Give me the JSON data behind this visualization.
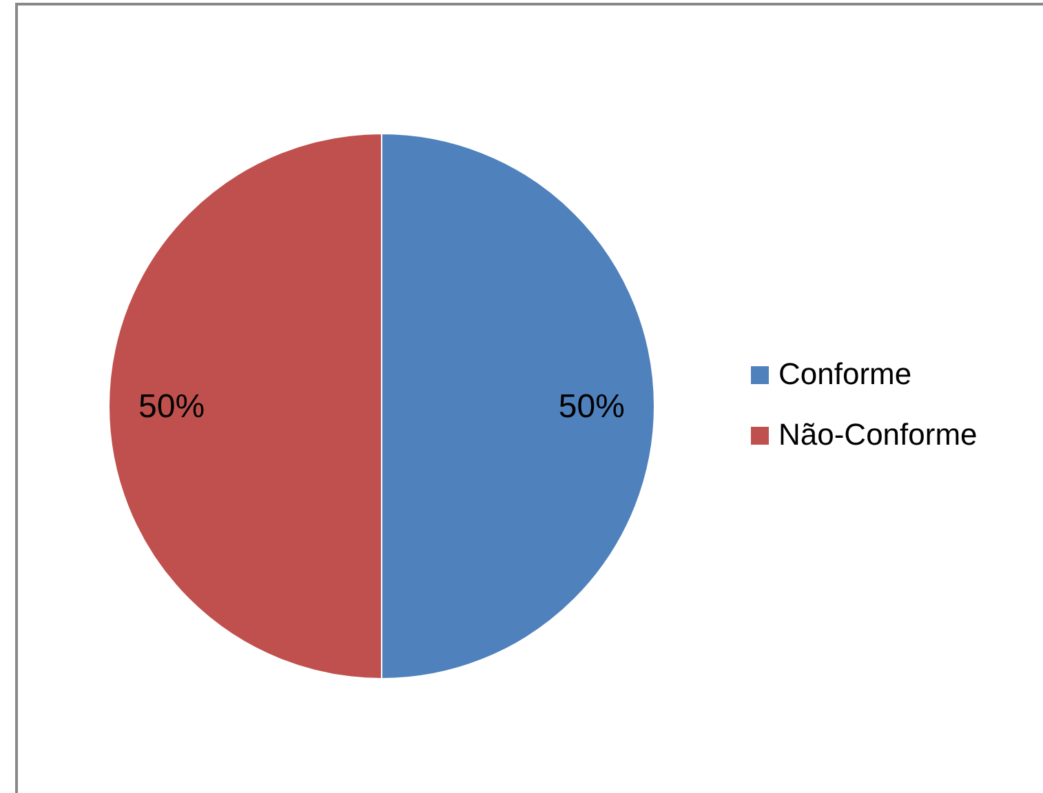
{
  "chart_data": {
    "type": "pie",
    "categories": [
      "Conforme",
      "Não-Conforme"
    ],
    "values": [
      50,
      50
    ],
    "colors": [
      "#4f81bd",
      "#c0504d"
    ],
    "value_labels": [
      "50%",
      "50%"
    ],
    "legend": "right"
  }
}
